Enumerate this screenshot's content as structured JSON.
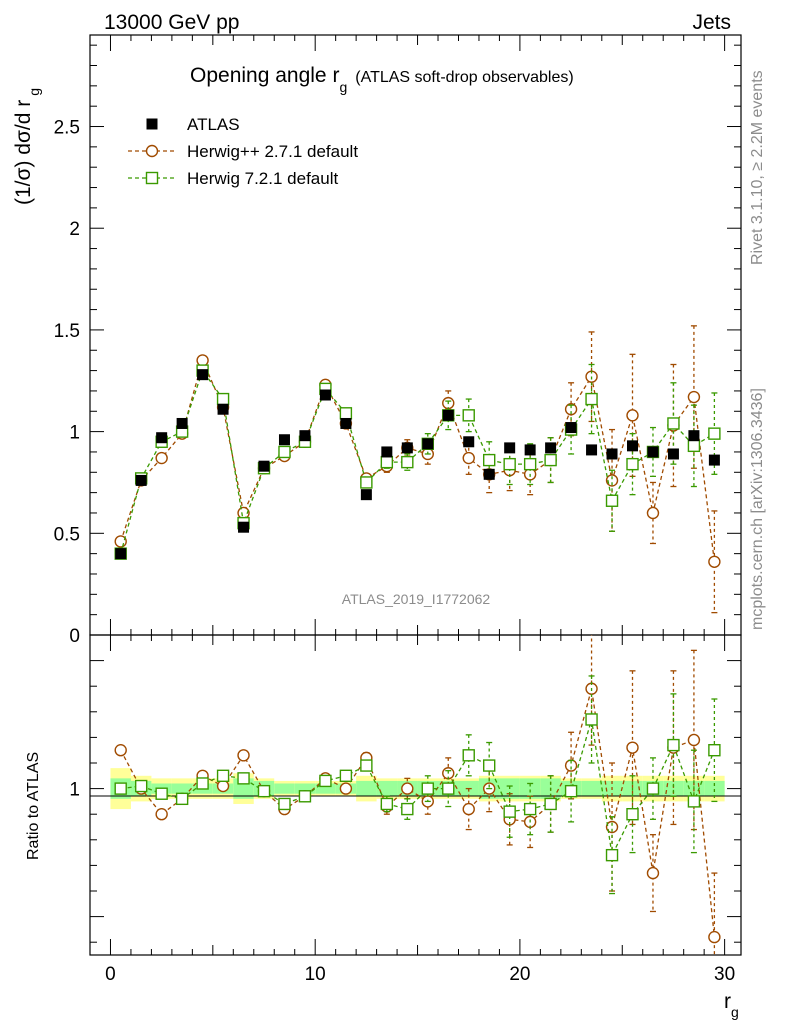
{
  "header": {
    "left": "13000 GeV pp",
    "right": "Jets"
  },
  "side_labels": {
    "top": "Rivet 3.1.10, ≥ 2.2M events",
    "bottom": "mcplots.cern.ch [arXiv:1306.3436]"
  },
  "chart_data": [
    {
      "panel": "main",
      "type": "scatter",
      "title_main": "Opening angle r",
      "title_sub": "g",
      "title_tail": "(ATLAS soft-drop observables)",
      "ylabel_main": "(1/σ) dσ/d r",
      "ylabel_sub": "g",
      "watermark": "ATLAS_2019_I1772062",
      "xlim": [
        -1,
        30.8
      ],
      "ylim": [
        0,
        2.95
      ],
      "yticks": [
        0,
        0.5,
        1,
        1.5,
        2,
        2.5
      ],
      "ytick_labels": [
        "0",
        "0.5",
        "1",
        "1.5",
        "2",
        "2.5"
      ],
      "legend_position": "top-left",
      "series": [
        {
          "name": "ATLAS",
          "marker": "filled-square",
          "color": "#000000",
          "x": [
            0.5,
            1.5,
            2.5,
            3.5,
            4.5,
            5.5,
            6.5,
            7.5,
            8.5,
            9.5,
            10.5,
            11.5,
            12.5,
            13.5,
            14.5,
            15.5,
            16.5,
            17.5,
            18.5,
            19.5,
            20.5,
            21.5,
            22.5,
            23.5,
            24.5,
            25.5,
            26.5,
            27.5,
            28.5,
            29.5
          ],
          "y": [
            0.4,
            0.76,
            0.97,
            1.04,
            1.28,
            1.11,
            0.53,
            0.83,
            0.96,
            0.98,
            1.18,
            1.04,
            0.69,
            0.9,
            0.92,
            0.94,
            1.08,
            0.95,
            0.79,
            0.92,
            0.91,
            0.92,
            1.02,
            0.91,
            0.89,
            0.93,
            0.9,
            0.89,
            0.98,
            0.86
          ]
        },
        {
          "name": "Herwig++ 2.7.1 default",
          "marker": "open-circle",
          "color": "#a04b00",
          "x": [
            0.5,
            1.5,
            2.5,
            3.5,
            4.5,
            5.5,
            6.5,
            7.5,
            8.5,
            9.5,
            10.5,
            11.5,
            12.5,
            13.5,
            14.5,
            15.5,
            16.5,
            17.5,
            18.5,
            19.5,
            20.5,
            21.5,
            22.5,
            23.5,
            24.5,
            25.5,
            26.5,
            27.5,
            28.5,
            29.5
          ],
          "y": [
            0.46,
            0.76,
            0.87,
            0.99,
            1.35,
            1.12,
            0.6,
            0.82,
            0.88,
            0.95,
            1.23,
            1.04,
            0.77,
            0.83,
            0.92,
            0.89,
            1.14,
            0.87,
            0.79,
            0.81,
            0.79,
            0.86,
            1.11,
            1.27,
            0.76,
            1.08,
            0.6,
            1.03,
            1.17,
            0.36
          ],
          "yerr": [
            0.01,
            0.01,
            0.01,
            0.01,
            0.01,
            0.01,
            0.01,
            0.01,
            0.01,
            0.01,
            0.01,
            0.01,
            0.02,
            0.03,
            0.04,
            0.05,
            0.06,
            0.08,
            0.09,
            0.1,
            0.1,
            0.11,
            0.13,
            0.22,
            0.25,
            0.3,
            0.15,
            0.3,
            0.35,
            0.25
          ]
        },
        {
          "name": "Herwig 7.2.1 default",
          "marker": "open-square",
          "color": "#3a9a00",
          "x": [
            0.5,
            1.5,
            2.5,
            3.5,
            4.5,
            5.5,
            6.5,
            7.5,
            8.5,
            9.5,
            10.5,
            11.5,
            12.5,
            13.5,
            14.5,
            15.5,
            16.5,
            17.5,
            18.5,
            19.5,
            20.5,
            21.5,
            22.5,
            23.5,
            24.5,
            25.5,
            26.5,
            27.5,
            28.5,
            29.5
          ],
          "y": [
            0.4,
            0.77,
            0.95,
            1.0,
            1.3,
            1.16,
            0.55,
            0.82,
            0.9,
            0.95,
            1.21,
            1.09,
            0.75,
            0.85,
            0.85,
            0.94,
            1.08,
            1.08,
            0.86,
            0.84,
            0.84,
            0.86,
            1.01,
            1.16,
            0.66,
            0.84,
            0.9,
            1.04,
            0.93,
            0.99
          ],
          "yerr": [
            0.01,
            0.01,
            0.01,
            0.01,
            0.01,
            0.01,
            0.01,
            0.01,
            0.01,
            0.01,
            0.01,
            0.02,
            0.02,
            0.03,
            0.04,
            0.05,
            0.07,
            0.08,
            0.09,
            0.1,
            0.1,
            0.11,
            0.12,
            0.17,
            0.15,
            0.15,
            0.12,
            0.2,
            0.2,
            0.2
          ]
        }
      ]
    },
    {
      "panel": "ratio",
      "type": "scatter",
      "ylabel": "Ratio to ATLAS",
      "xlabel_main": "r",
      "xlabel_sub": "g",
      "xlim": [
        -1,
        30.8
      ],
      "ylim": [
        0.35,
        1.6
      ],
      "xticks": [
        0,
        10,
        20,
        30
      ],
      "xtick_labels": [
        "0",
        "10",
        "20",
        "30"
      ],
      "yticks": [
        1
      ],
      "ytick_labels": [
        "1"
      ],
      "band_x_edges": [
        0,
        1,
        2,
        3,
        4,
        5,
        6,
        7,
        8,
        9,
        10,
        11,
        12,
        13,
        14,
        15,
        16,
        17,
        18,
        19,
        20,
        21,
        22,
        23,
        24,
        25,
        26,
        27,
        28,
        29,
        30
      ],
      "band_inner": [
        0.04,
        0.03,
        0.02,
        0.02,
        0.02,
        0.02,
        0.04,
        0.03,
        0.02,
        0.02,
        0.02,
        0.02,
        0.03,
        0.03,
        0.03,
        0.03,
        0.03,
        0.03,
        0.04,
        0.04,
        0.04,
        0.04,
        0.03,
        0.03,
        0.03,
        0.03,
        0.03,
        0.03,
        0.03,
        0.03
      ],
      "band_outer": [
        0.08,
        0.05,
        0.04,
        0.04,
        0.04,
        0.04,
        0.06,
        0.04,
        0.03,
        0.03,
        0.03,
        0.03,
        0.05,
        0.04,
        0.04,
        0.04,
        0.04,
        0.04,
        0.05,
        0.05,
        0.05,
        0.05,
        0.04,
        0.04,
        0.05,
        0.05,
        0.05,
        0.05,
        0.05,
        0.05
      ],
      "series": [
        {
          "name": "Herwig++ 2.7.1 default",
          "marker": "open-circle",
          "color": "#a04b00",
          "x": [
            0.5,
            1.5,
            2.5,
            3.5,
            4.5,
            5.5,
            6.5,
            7.5,
            8.5,
            9.5,
            10.5,
            11.5,
            12.5,
            13.5,
            14.5,
            15.5,
            16.5,
            17.5,
            18.5,
            19.5,
            20.5,
            21.5,
            22.5,
            23.5,
            24.5,
            25.5,
            26.5,
            27.5,
            28.5,
            29.5
          ],
          "y": [
            1.15,
            1.0,
            0.9,
            0.96,
            1.05,
            1.01,
            1.13,
            0.99,
            0.92,
            0.97,
            1.04,
            1.0,
            1.12,
            0.93,
            1.0,
            0.95,
            1.06,
            0.92,
            1.0,
            0.88,
            0.87,
            0.94,
            1.09,
            1.39,
            0.85,
            1.16,
            0.67,
            1.16,
            1.19,
            0.42
          ],
          "yerr": [
            0.01,
            0.01,
            0.01,
            0.01,
            0.01,
            0.01,
            0.01,
            0.01,
            0.01,
            0.01,
            0.01,
            0.01,
            0.02,
            0.03,
            0.04,
            0.05,
            0.06,
            0.08,
            0.09,
            0.1,
            0.1,
            0.11,
            0.13,
            0.22,
            0.25,
            0.3,
            0.15,
            0.3,
            0.35,
            0.25
          ]
        },
        {
          "name": "Herwig 7.2.1 default",
          "marker": "open-square",
          "color": "#3a9a00",
          "x": [
            0.5,
            1.5,
            2.5,
            3.5,
            4.5,
            5.5,
            6.5,
            7.5,
            8.5,
            9.5,
            10.5,
            11.5,
            12.5,
            13.5,
            14.5,
            15.5,
            16.5,
            17.5,
            18.5,
            19.5,
            20.5,
            21.5,
            22.5,
            23.5,
            24.5,
            25.5,
            26.5,
            27.5,
            28.5,
            29.5
          ],
          "y": [
            1.0,
            1.01,
            0.98,
            0.96,
            1.02,
            1.05,
            1.04,
            0.99,
            0.94,
            0.97,
            1.03,
            1.05,
            1.09,
            0.94,
            0.92,
            1.0,
            1.0,
            1.13,
            1.09,
            0.91,
            0.92,
            0.94,
            0.99,
            1.27,
            0.74,
            0.9,
            1.0,
            1.17,
            0.95,
            1.15
          ],
          "yerr": [
            0.01,
            0.01,
            0.01,
            0.01,
            0.01,
            0.01,
            0.01,
            0.01,
            0.01,
            0.01,
            0.01,
            0.02,
            0.02,
            0.03,
            0.04,
            0.05,
            0.07,
            0.08,
            0.09,
            0.1,
            0.1,
            0.11,
            0.12,
            0.17,
            0.15,
            0.15,
            0.12,
            0.2,
            0.2,
            0.2
          ]
        }
      ]
    }
  ]
}
